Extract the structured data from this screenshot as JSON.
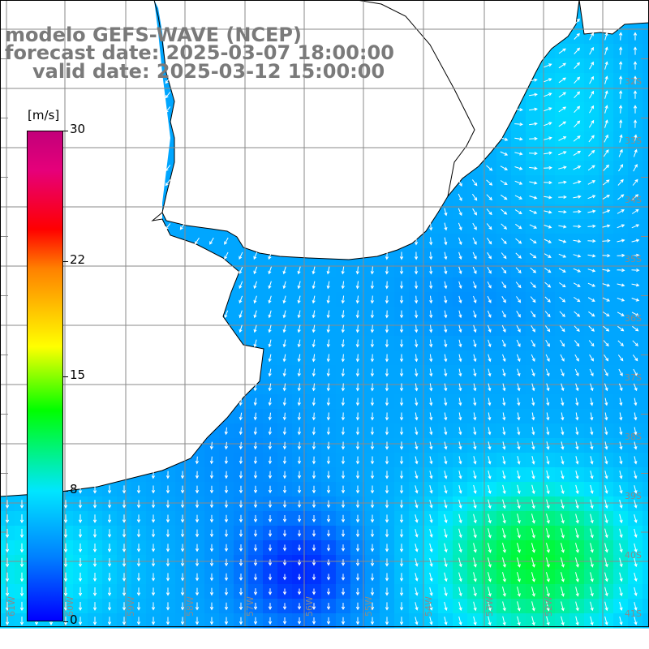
{
  "title": {
    "line1": "modelo GEFS-WAVE (NCEP)",
    "line2": "forecast date: 2025-03-07 18:00:00",
    "line3": "valid date: 2025-03-12 15:00:00"
  },
  "colorbar": {
    "unit": "[m/s]",
    "ticks": [
      "30",
      "22",
      "15",
      "8",
      "0"
    ],
    "colors": [
      "#0000ff",
      "#0080ff",
      "#00e6ff",
      "#00ff00",
      "#ffff00",
      "#ff8000",
      "#ff0000",
      "#c2007a"
    ]
  },
  "latitude_labels": [
    "32S",
    "33S",
    "34S",
    "35S",
    "36S",
    "37S",
    "38S",
    "39S",
    "40S",
    "41S"
  ],
  "longitude_labels": [
    "61W",
    "60W",
    "59W",
    "58W",
    "57W",
    "56W",
    "55W",
    "54W",
    "53W",
    "52W"
  ],
  "colors": {
    "land": "#ffffff",
    "coast": "#000000",
    "grid": "#8a8a8a",
    "arrow": "#ffffff",
    "title": "#7a7a7a"
  }
}
